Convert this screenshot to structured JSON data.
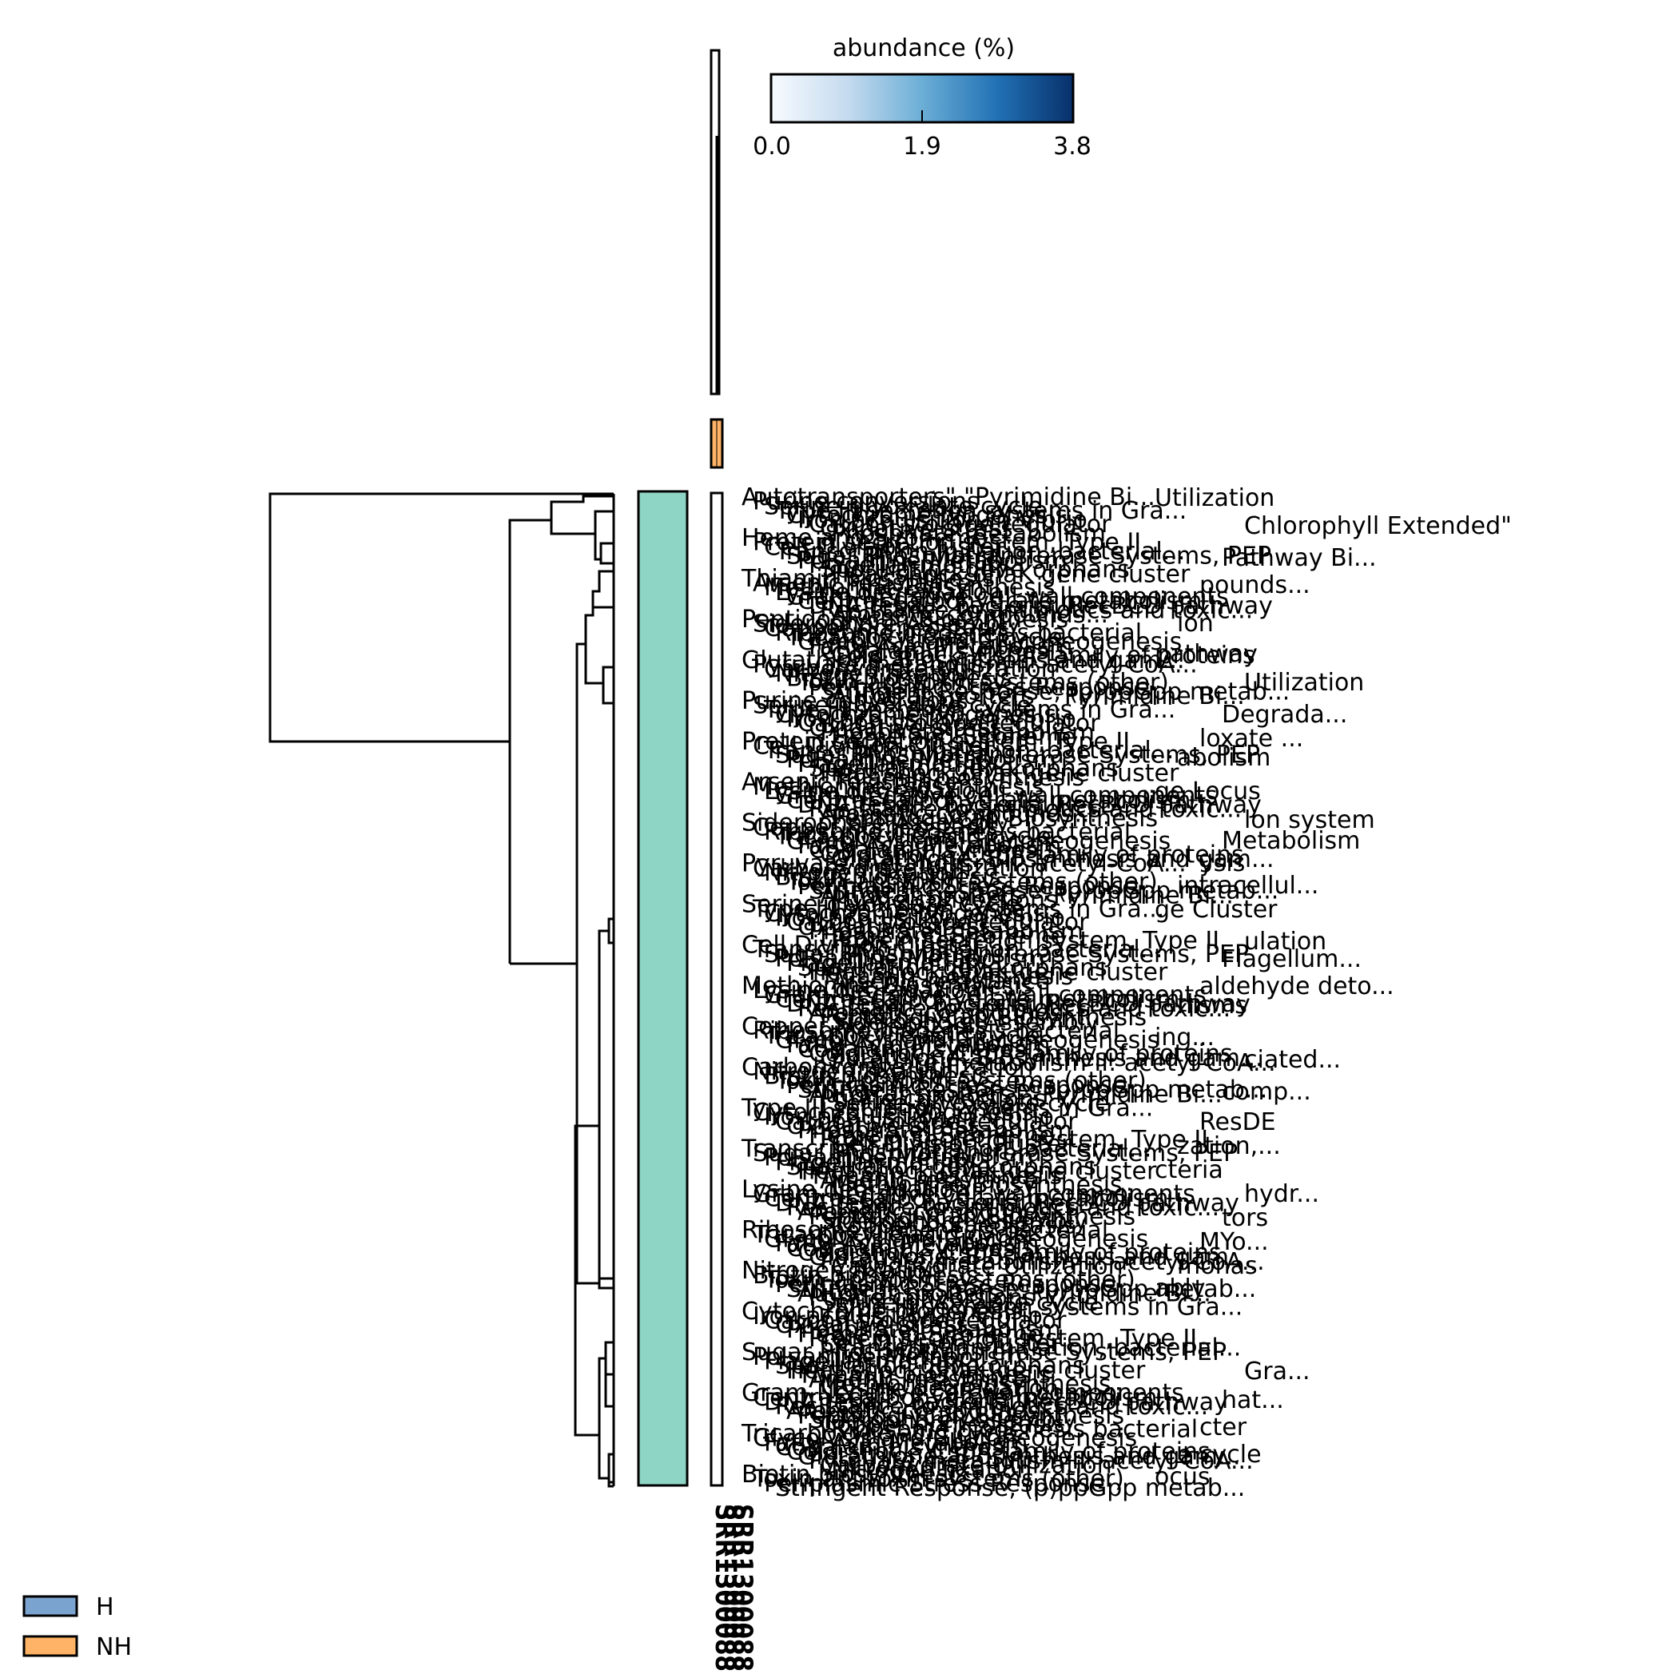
{
  "chart_data": {
    "type": "heatmap",
    "title": "",
    "colorbar": {
      "label": "abundance (%)",
      "min": 0.0,
      "max": 3.8,
      "ticks": [
        "0.0",
        "1.9",
        "3.8"
      ],
      "colormap": [
        "#f7fbff",
        "#c6dbef",
        "#6baed6",
        "#2171b5",
        "#08306b"
      ]
    },
    "legend": {
      "placement": "bottom-left",
      "entries": [
        {
          "label": "H",
          "color": "#7ba3cf"
        },
        {
          "label": "NH",
          "color": "#ffb366"
        }
      ]
    },
    "column_group": "NH",
    "row_cluster_color": "#8fd5c6",
    "sample_label_visible": "SRR1300088",
    "row_label_texts": [
      "Autotransporters\" \"Pyrimidine Bi...",
      "Arsenic resistance",
      "Carbohydrate Utilization",
      "Sugar Phosphotransferase Systems, PEP",
      "Glycolysis and Gluconeogenesis",
      "Oxidative stress",
      "Aromatic compounds...",
      "Purine conversions",
      "Methionine Biosynthesis",
      "Nitrogen fixation",
      "Polyamine Metabolism",
      "Fatty Acid Metabolism",
      "Phosphate metabolism",
      "Peptidoglycan Biosynthesis",
      "Serine-glyoxylate cycle",
      "Lysine degradation",
      "Biotin biosynthesis",
      "Flagellar motility",
      "Cobalamin synthesis",
      "Heme and Siroheme",
      "Siderophore Assembly",
      "Type III secretion systems in Gra...",
      "Gram-Negative cell wall components",
      "Toxin-antitoxin systems (other)",
      "Sporulation gene orphans",
      "Cold shock, CspA family of proteins",
      "Protein secretion system, Type II",
      "Copper homeostasis",
      "Cytochrome biogenesis",
      "Central carbohydrate metabolism",
      "Periplasmic Stress Response",
      "Heat shock dnaK gene cluster",
      "Glutathione: Biosynthesis and gam...",
      "Cell Division Cluster",
      "Ribosome biogenesis bacterial",
      "Iron acquisition in Vibrio",
      "DNA repair, bacterial RecBCD pathway",
      "Stringent Response, (p)ppGpp metab...",
      "Thiamin biosynthesis",
      "Pyruvate metabolism II: acetyl-CoA...",
      "Transcription initiation, bacterial...",
      "Tricarboxylic acid cycle",
      "Carbon storage regulator",
      "Resistance to antibiotics and toxic..."
    ],
    "front_labels": [
      "Utilization",
      "Chlorophyll Extended\"",
      "Pathway Bi...",
      "pounds...",
      "ion",
      "pathway",
      "Utilization",
      "Degrada...",
      "loxate ...",
      "abolism",
      "ge Locus",
      "lon system",
      "Metabolism",
      "ysis",
      "intracellul...",
      "ge Cluster",
      "ulation",
      "Flagellum...",
      "aldehyde deto...",
      "nisms",
      "ing...",
      "ciated...",
      "comp...",
      "ResDE",
      "zation,...",
      "cteria",
      "hydr...",
      "tors",
      "MYo...",
      "monas",
      "ably",
      "Gra...",
      "hat...",
      "cter",
      "e cycle",
      "ocus"
    ]
  }
}
